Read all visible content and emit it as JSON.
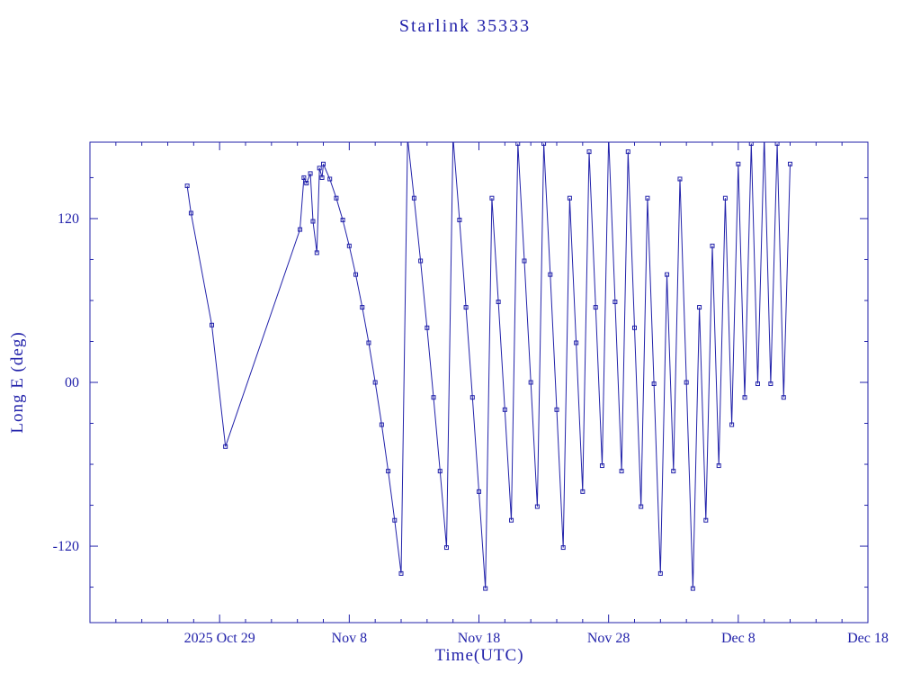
{
  "chart_data": {
    "type": "line",
    "title": "Starlink 35333",
    "xlabel": "Time(UTC)",
    "ylabel": "Long E (deg)",
    "marker": "open-square",
    "legend": "none",
    "grid": false,
    "colors": {
      "line": "#2222aa",
      "axis": "#2222aa",
      "text": "#2222aa",
      "background": "#ffffff"
    },
    "xlim": [
      0,
      60
    ],
    "ylim": [
      -176,
      176
    ],
    "x_unit": "days since 2025 Oct 19 (derived from axis labels)",
    "x_ticks": [
      {
        "t": 10,
        "label": "2025 Oct 29"
      },
      {
        "t": 20,
        "label": "Nov 8"
      },
      {
        "t": 30,
        "label": "Nov 18"
      },
      {
        "t": 40,
        "label": "Nov 28"
      },
      {
        "t": 50,
        "label": "Dec 8"
      },
      {
        "t": 60,
        "label": "Dec 18"
      }
    ],
    "y_ticks": [
      {
        "v": -120,
        "label": "-120"
      },
      {
        "v": 0,
        "label": "00"
      },
      {
        "v": 120,
        "label": "120"
      }
    ],
    "ticks": {
      "x_minor": 2,
      "x_major": 10,
      "y_minor": 30,
      "y_major": 120
    },
    "points": [
      [
        7.5,
        144
      ],
      [
        7.8,
        124
      ],
      [
        9.4,
        42
      ],
      [
        10.45,
        -47
      ],
      [
        16.2,
        112
      ],
      [
        16.5,
        150
      ],
      [
        16.7,
        146
      ],
      [
        17.0,
        153
      ],
      [
        17.2,
        118
      ],
      [
        17.5,
        95
      ],
      [
        17.7,
        157
      ],
      [
        17.9,
        150
      ],
      [
        18.0,
        160
      ],
      [
        18.5,
        149
      ],
      [
        19.0,
        135
      ],
      [
        19.5,
        119
      ],
      [
        20.0,
        100
      ],
      [
        20.5,
        79
      ],
      [
        21.0,
        55
      ],
      [
        21.5,
        29
      ],
      [
        22.0,
        0
      ],
      [
        22.5,
        -31
      ],
      [
        23.0,
        -65
      ],
      [
        23.5,
        -101
      ],
      [
        24.0,
        -140
      ],
      [
        24.5,
        179
      ],
      [
        25.0,
        135
      ],
      [
        25.5,
        89
      ],
      [
        26.0,
        40
      ],
      [
        26.5,
        -11
      ],
      [
        27.0,
        -65
      ],
      [
        27.5,
        -121
      ],
      [
        28.0,
        180
      ],
      [
        28.5,
        119
      ],
      [
        29.0,
        55
      ],
      [
        29.5,
        -11
      ],
      [
        30.0,
        -80
      ],
      [
        30.5,
        -151
      ],
      [
        31.0,
        135
      ],
      [
        31.5,
        59
      ],
      [
        32.0,
        -20
      ],
      [
        32.5,
        -101
      ],
      [
        33.0,
        175
      ],
      [
        33.5,
        89
      ],
      [
        34.0,
        0
      ],
      [
        34.5,
        -91
      ],
      [
        35.0,
        175
      ],
      [
        35.5,
        79
      ],
      [
        36.0,
        -20
      ],
      [
        36.5,
        -121
      ],
      [
        37.0,
        135
      ],
      [
        37.5,
        29
      ],
      [
        38.0,
        -80
      ],
      [
        38.5,
        169
      ],
      [
        39.0,
        55
      ],
      [
        39.5,
        -61
      ],
      [
        40.0,
        180
      ],
      [
        40.5,
        59
      ],
      [
        41.0,
        -65
      ],
      [
        41.5,
        169
      ],
      [
        42.0,
        40
      ],
      [
        42.5,
        -91
      ],
      [
        43.0,
        135
      ],
      [
        43.5,
        -1
      ],
      [
        44.0,
        -140
      ],
      [
        44.5,
        79
      ],
      [
        45.0,
        -65
      ],
      [
        45.5,
        149
      ],
      [
        46.0,
        0
      ],
      [
        46.5,
        -151
      ],
      [
        47.0,
        55
      ],
      [
        47.5,
        -101
      ],
      [
        48.0,
        100
      ],
      [
        48.5,
        -61
      ],
      [
        49.0,
        135
      ],
      [
        49.5,
        -31
      ],
      [
        50.0,
        160
      ],
      [
        50.5,
        -11
      ],
      [
        51.0,
        175
      ],
      [
        51.5,
        -1
      ],
      [
        52.0,
        180
      ],
      [
        52.5,
        -1
      ],
      [
        53.0,
        175
      ],
      [
        53.5,
        -11
      ],
      [
        54.0,
        160
      ]
    ]
  }
}
